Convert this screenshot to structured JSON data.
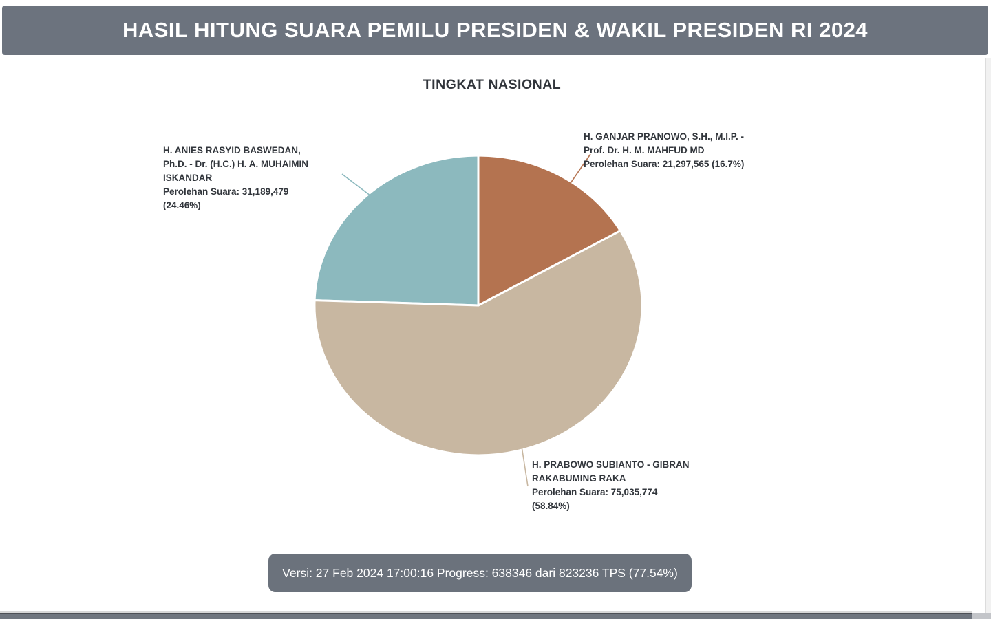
{
  "header": {
    "title": "HASIL HITUNG SUARA PEMILU PRESIDEN & WAKIL PRESIDEN RI 2024",
    "bg_color": "#6C737E",
    "text_color": "#FFFFFF"
  },
  "chart_data": {
    "type": "pie",
    "title": "TINGKAT NASIONAL",
    "value_unit": "suara",
    "series": [
      {
        "key": "anies-muhaimin",
        "name": "H. ANIES RASYID BASWEDAN, Ph.D. - Dr. (H.C.) H. A. MUHAIMIN ISKANDAR",
        "votes": 31189479,
        "pct": 24.46,
        "color": "#8CB9BE"
      },
      {
        "key": "prabowo-gibran",
        "name": "H. PRABOWO SUBIANTO - GIBRAN RAKABUMING RAKA",
        "votes": 75035774,
        "pct": 58.84,
        "color": "#C8B7A1"
      },
      {
        "key": "ganjar-mahfud",
        "name": "H. GANJAR PRANOWO, S.H., M.I.P. - Prof. Dr. H. M. MAHFUD MD",
        "votes": 21297565,
        "pct": 16.7,
        "color": "#B47350"
      }
    ],
    "layout": {
      "start_angle": "top",
      "direction": "counterclockwise",
      "labels": "outside-with-leader-lines",
      "slice_gap_stroke": "#FFFFFF"
    }
  },
  "labels": {
    "anies": {
      "lines": [
        "H. ANIES RASYID BASWEDAN,",
        "Ph.D. - Dr. (H.C.) H. A. MUHAIMIN",
        "ISKANDAR",
        "Perolehan Suara: 31,189,479",
        "(24.46%)"
      ]
    },
    "ganjar": {
      "lines": [
        "H. GANJAR PRANOWO, S.H., M.I.P. -",
        "Prof. Dr. H. M. MAHFUD MD",
        "Perolehan Suara: 21,297,565 (16.7%)"
      ]
    },
    "prabowo": {
      "lines": [
        "H. PRABOWO SUBIANTO - GIBRAN",
        "RAKABUMING RAKA",
        "Perolehan Suara: 75,035,774",
        "(58.84%)"
      ]
    }
  },
  "footer": {
    "version_text": "Versi: 27 Feb 2024 17:00:16 Progress: 638346 dari 823236 TPS (77.54%)"
  }
}
